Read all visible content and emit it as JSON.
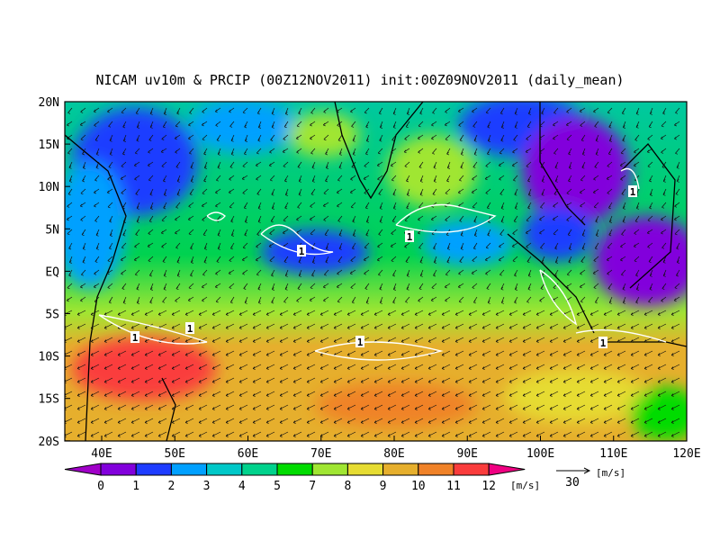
{
  "title": "NICAM uv10m & PRCIP (00Z12NOV2011) init:00Z09NOV2011 (daily_mean)",
  "lat_labels": [
    "20N",
    "15N",
    "10N",
    "5N",
    "EQ",
    "5S",
    "10S",
    "15S",
    "20S"
  ],
  "lon_labels": [
    "40E",
    "50E",
    "60E",
    "70E",
    "80E",
    "90E",
    "100E",
    "110E",
    "120E"
  ],
  "contour_labels": [
    "1",
    "1",
    "1",
    "1",
    "1",
    "1",
    "1"
  ],
  "colorbar": {
    "levels": [
      0,
      1,
      2,
      3,
      4,
      5,
      7,
      8,
      9,
      10,
      11,
      12
    ],
    "colors": [
      "#a000c8",
      "#8200dc",
      "#1e3cff",
      "#00a0ff",
      "#00c8c8",
      "#00d28c",
      "#00dc00",
      "#a0e632",
      "#e6dc32",
      "#e6af2d",
      "#f08228",
      "#fa3c3c",
      "#f00082"
    ],
    "unit": "[m/s]"
  },
  "reference_vector": {
    "label": "30",
    "unit": "[m/s]"
  }
}
